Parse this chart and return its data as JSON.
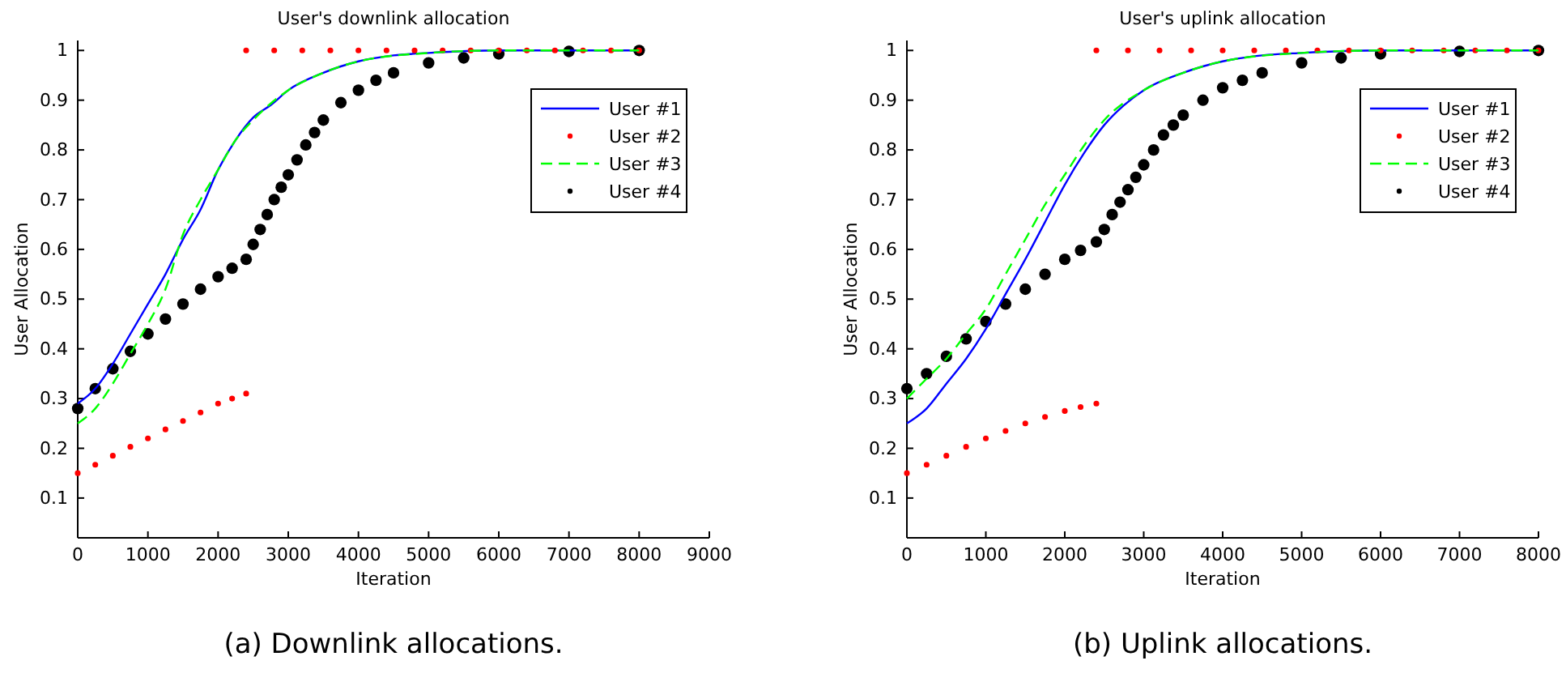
{
  "chart_data": [
    {
      "type": "line",
      "title": "User's downlink allocation",
      "xlabel": "Iteration",
      "ylabel": "User Allocation",
      "xlim": [
        0,
        9000
      ],
      "xticks": [
        0,
        1000,
        2000,
        3000,
        4000,
        5000,
        6000,
        7000,
        8000,
        9000
      ],
      "ylim": [
        0.02,
        1.02
      ],
      "yticks": [
        0.1,
        0.2,
        0.3,
        0.4,
        0.5,
        0.6,
        0.7,
        0.8,
        0.9,
        1
      ],
      "legend": "top right",
      "grid": false,
      "annotations": [
        "(a)  Downlink allocations."
      ],
      "series": [
        {
          "name": "User #1",
          "color": "#0000ff",
          "line_style": "solid",
          "x": [
            0,
            250,
            500,
            750,
            1000,
            1250,
            1500,
            1750,
            2000,
            2250,
            2500,
            2750,
            3000,
            3500,
            4000,
            4500,
            5000,
            6000,
            7000,
            8000
          ],
          "values": [
            0.29,
            0.32,
            0.37,
            0.43,
            0.49,
            0.55,
            0.62,
            0.68,
            0.76,
            0.82,
            0.865,
            0.89,
            0.92,
            0.955,
            0.978,
            0.99,
            0.995,
            1,
            1,
            1
          ]
        },
        {
          "name": "User #2",
          "type": "scatter",
          "marker": "circle",
          "color": "#ff0000",
          "x": [
            0,
            250,
            500,
            750,
            1000,
            1250,
            1500,
            1750,
            2000,
            2200,
            2400,
            2400,
            2800,
            3200,
            3600,
            4000,
            4400,
            4800,
            5200,
            5600,
            6000,
            6400,
            6800,
            7200,
            7600,
            8000
          ],
          "values": [
            0.15,
            0.167,
            0.185,
            0.203,
            0.22,
            0.238,
            0.255,
            0.272,
            0.29,
            0.3,
            0.31,
            1,
            1,
            1,
            1,
            1,
            1,
            1,
            1,
            1,
            1,
            1,
            1,
            1,
            1,
            1
          ]
        },
        {
          "name": "User #3",
          "type": "line",
          "color": "#00ff00",
          "line_style": "dashed",
          "x": [
            0,
            250,
            500,
            750,
            1000,
            1250,
            1500,
            1750,
            2000,
            2250,
            2500,
            3000,
            3500,
            4000,
            5000,
            6000,
            8000
          ],
          "values": [
            0.25,
            0.28,
            0.33,
            0.39,
            0.45,
            0.52,
            0.63,
            0.7,
            0.76,
            0.82,
            0.86,
            0.92,
            0.955,
            0.978,
            0.995,
            1,
            1
          ]
        },
        {
          "name": "User #4",
          "type": "scatter",
          "marker": "circle",
          "color": "#000000",
          "x": [
            0,
            250,
            500,
            750,
            1000,
            1250,
            1500,
            1750,
            2000,
            2200,
            2400,
            2500,
            2600,
            2700,
            2800,
            2900,
            3000,
            3125,
            3250,
            3375,
            3500,
            3750,
            4000,
            4250,
            4500,
            5000,
            5500,
            6000,
            7000,
            8000
          ],
          "values": [
            0.28,
            0.32,
            0.36,
            0.395,
            0.43,
            0.46,
            0.49,
            0.52,
            0.545,
            0.562,
            0.58,
            0.61,
            0.64,
            0.67,
            0.7,
            0.725,
            0.75,
            0.78,
            0.81,
            0.835,
            0.86,
            0.895,
            0.92,
            0.94,
            0.955,
            0.975,
            0.985,
            0.993,
            0.998,
            1
          ]
        }
      ]
    },
    {
      "type": "line",
      "title": "User's uplink allocation",
      "xlabel": "Iteration",
      "ylabel": "User Allocation",
      "xlim": [
        0,
        8000
      ],
      "xticks": [
        0,
        1000,
        2000,
        3000,
        4000,
        5000,
        6000,
        7000,
        8000
      ],
      "ylim": [
        0.02,
        1.02
      ],
      "yticks": [
        0.1,
        0.2,
        0.3,
        0.4,
        0.5,
        0.6,
        0.7,
        0.8,
        0.9,
        1
      ],
      "legend": "top right",
      "grid": false,
      "annotations": [
        "(b)  Uplink allocations."
      ],
      "series": [
        {
          "name": "User #1",
          "color": "#0000ff",
          "line_style": "solid",
          "x": [
            0,
            250,
            500,
            750,
            1000,
            1250,
            1500,
            1750,
            2000,
            2250,
            2500,
            2750,
            3000,
            3500,
            4000,
            4500,
            5000,
            6000,
            7000,
            8000
          ],
          "values": [
            0.25,
            0.28,
            0.33,
            0.38,
            0.44,
            0.51,
            0.58,
            0.655,
            0.73,
            0.795,
            0.85,
            0.89,
            0.92,
            0.955,
            0.978,
            0.99,
            0.995,
            1,
            1,
            1
          ]
        },
        {
          "name": "User #2",
          "type": "scatter",
          "marker": "circle",
          "color": "#ff0000",
          "x": [
            0,
            250,
            500,
            750,
            1000,
            1250,
            1500,
            1750,
            2000,
            2200,
            2400,
            2400,
            2800,
            3200,
            3600,
            4000,
            4400,
            4800,
            5200,
            5600,
            6000,
            6400,
            6800,
            7200,
            7600,
            8000
          ],
          "values": [
            0.15,
            0.167,
            0.185,
            0.203,
            0.22,
            0.235,
            0.25,
            0.263,
            0.275,
            0.283,
            0.29,
            1,
            1,
            1,
            1,
            1,
            1,
            1,
            1,
            1,
            1,
            1,
            1,
            1,
            1,
            1
          ]
        },
        {
          "name": "User #3",
          "type": "line",
          "color": "#00ff00",
          "line_style": "dashed",
          "x": [
            0,
            250,
            500,
            750,
            1000,
            1250,
            1500,
            1750,
            2000,
            2250,
            2500,
            3000,
            3500,
            4000,
            5000,
            6000,
            8000
          ],
          "values": [
            0.3,
            0.34,
            0.38,
            0.43,
            0.48,
            0.55,
            0.62,
            0.69,
            0.75,
            0.81,
            0.86,
            0.92,
            0.955,
            0.978,
            0.995,
            1,
            1
          ]
        },
        {
          "name": "User #4",
          "type": "scatter",
          "marker": "circle",
          "color": "#000000",
          "x": [
            0,
            250,
            500,
            750,
            1000,
            1250,
            1500,
            1750,
            2000,
            2200,
            2400,
            2500,
            2600,
            2700,
            2800,
            2900,
            3000,
            3125,
            3250,
            3375,
            3500,
            3750,
            4000,
            4250,
            4500,
            5000,
            5500,
            6000,
            7000,
            8000
          ],
          "values": [
            0.32,
            0.35,
            0.385,
            0.42,
            0.455,
            0.49,
            0.52,
            0.55,
            0.58,
            0.598,
            0.615,
            0.64,
            0.67,
            0.695,
            0.72,
            0.745,
            0.77,
            0.8,
            0.83,
            0.85,
            0.87,
            0.9,
            0.925,
            0.94,
            0.955,
            0.975,
            0.985,
            0.993,
            0.998,
            1
          ]
        }
      ]
    }
  ]
}
